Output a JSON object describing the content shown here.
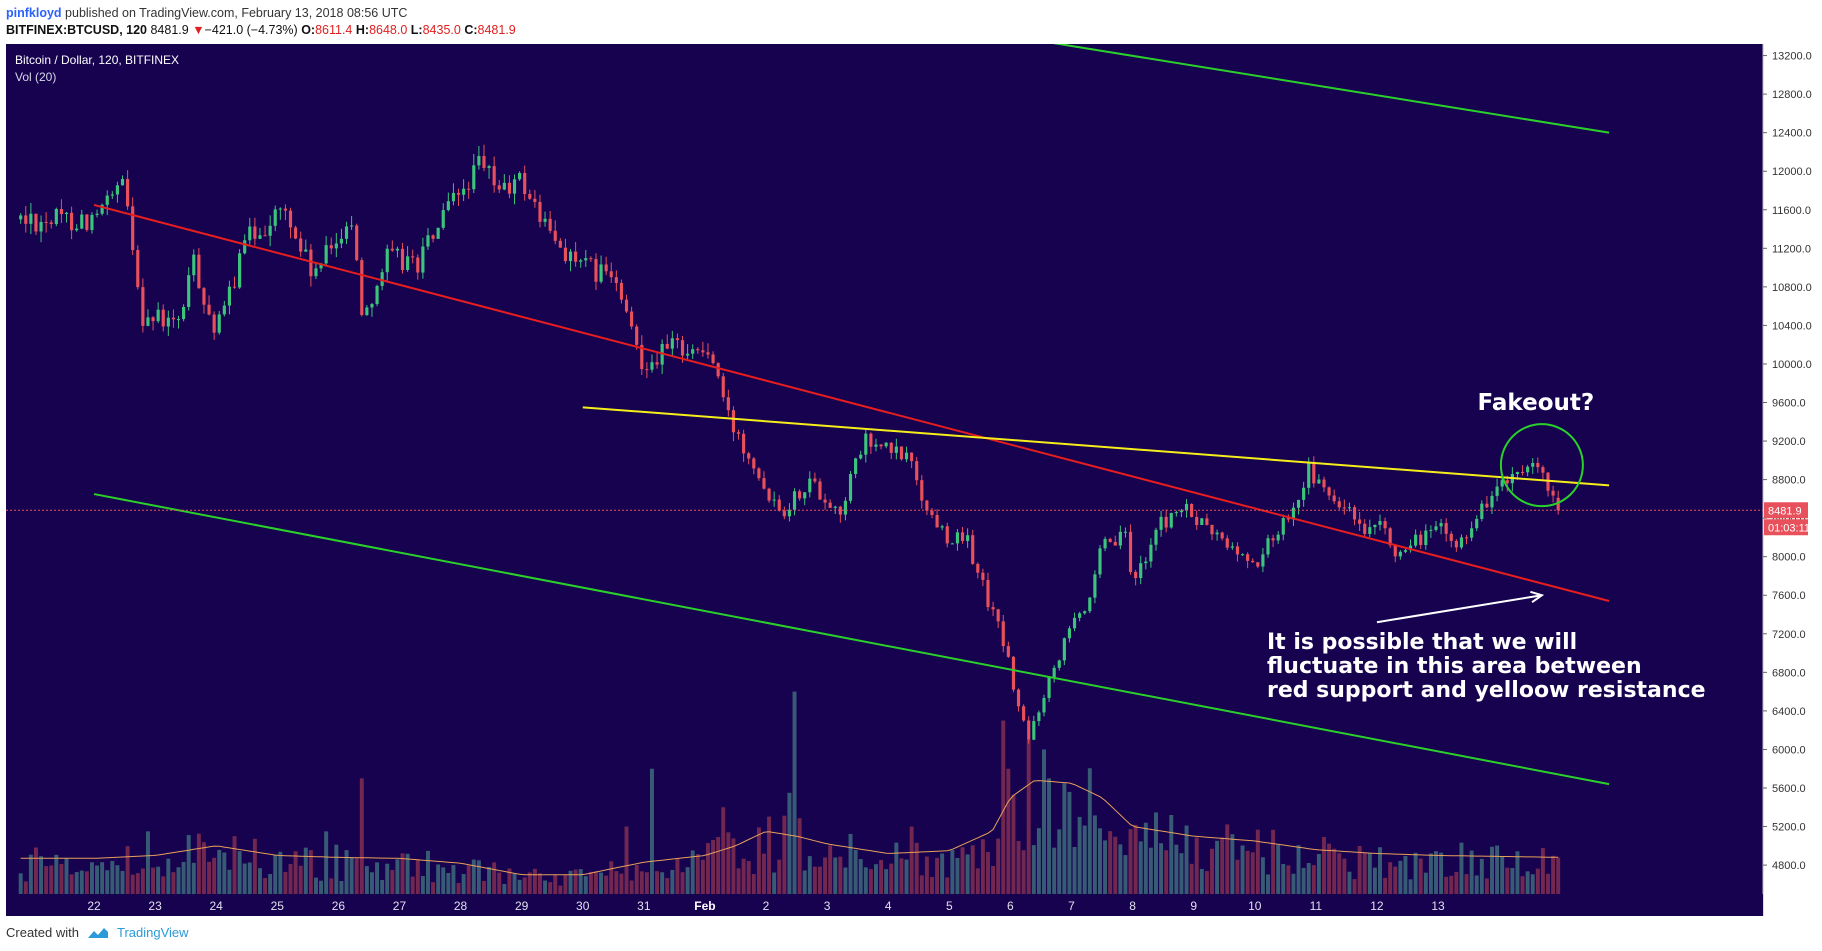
{
  "header": {
    "user": "pinfkloyd",
    "published_text": "published on TradingView.com, February 13, 2018 08:56 UTC"
  },
  "ticker": {
    "symbol": "BITFINEX:BTCUSD, 120",
    "last": "8481.9",
    "change": "−421.0 (−4.73%)",
    "o_label": "O:",
    "o": "8611.4",
    "h_label": "H:",
    "h": "8648.0",
    "l_label": "L:",
    "l": "8435.0",
    "c_label": "C:",
    "c": "8481.9"
  },
  "legend": {
    "title": "Bitcoin / Dollar, 120, BITFINEX",
    "vol": "Vol (20)"
  },
  "footer": {
    "created": "Created with",
    "brand": "TradingView"
  },
  "colors": {
    "background": "#16024f",
    "up": "#3cc47c",
    "down": "#e8505b",
    "vol_up": "#3c6378",
    "vol_down": "#7a2a50",
    "vol_ma": "#e8a058",
    "support_red": "#e61e1e",
    "resistance_yellow": "#f5ee1a",
    "channel_green": "#2bd12b",
    "annotation_white": "#ffffff"
  },
  "chart_data": {
    "type": "candlestick",
    "title": "Bitcoin / Dollar, 120, BITFINEX",
    "y_axis": {
      "ticks": [
        "13200.0",
        "12800.0",
        "12400.0",
        "12000.0",
        "11600.0",
        "11200.0",
        "10800.0",
        "10400.0",
        "10000.0",
        "9600.0",
        "9200.0",
        "8800.0",
        "8400.0",
        "8000.0",
        "7600.0",
        "7200.0",
        "6800.0",
        "6400.0",
        "6000.0",
        "5600.0",
        "5200.0",
        "4800.0"
      ],
      "range": [
        4500,
        13320
      ],
      "side": "right"
    },
    "x_axis": {
      "labels": [
        "22",
        "23",
        "24",
        "25",
        "26",
        "27",
        "28",
        "29",
        "30",
        "31",
        "Feb",
        "2",
        "3",
        "4",
        "5",
        "6",
        "7",
        "8",
        "9",
        "10",
        "11",
        "12",
        "13"
      ],
      "unit": "day (Jan 22 – Feb 13, 2018)"
    },
    "last_price": {
      "value": 8481.9,
      "label": "8481.9",
      "countdown": "01:03:11"
    },
    "price_path_keypoints": [
      {
        "day": 22.0,
        "price": 11500
      },
      {
        "day": 22.5,
        "price": 11850
      },
      {
        "day": 22.8,
        "price": 10500
      },
      {
        "day": 23.4,
        "price": 10400
      },
      {
        "day": 23.6,
        "price": 11100
      },
      {
        "day": 24.0,
        "price": 10300
      },
      {
        "day": 24.5,
        "price": 11300
      },
      {
        "day": 25.1,
        "price": 11600
      },
      {
        "day": 25.6,
        "price": 10900
      },
      {
        "day": 26.2,
        "price": 11550
      },
      {
        "day": 26.4,
        "price": 10500
      },
      {
        "day": 26.8,
        "price": 11100
      },
      {
        "day": 27.3,
        "price": 11050
      },
      {
        "day": 27.7,
        "price": 11500
      },
      {
        "day": 28.3,
        "price": 12050
      },
      {
        "day": 28.7,
        "price": 11800
      },
      {
        "day": 29.0,
        "price": 11900
      },
      {
        "day": 29.5,
        "price": 11300
      },
      {
        "day": 30.0,
        "price": 11000
      },
      {
        "day": 30.5,
        "price": 10900
      },
      {
        "day": 30.7,
        "price": 10500
      },
      {
        "day": 31.0,
        "price": 10000
      },
      {
        "day": 31.5,
        "price": 10200
      },
      {
        "day": 32.1,
        "price": 10100
      },
      {
        "day": 32.4,
        "price": 9400
      },
      {
        "day": 32.8,
        "price": 9000
      },
      {
        "day": 33.0,
        "price": 8700
      },
      {
        "day": 33.3,
        "price": 8500
      },
      {
        "day": 33.7,
        "price": 8800
      },
      {
        "day": 34.2,
        "price": 8450
      },
      {
        "day": 34.6,
        "price": 9200
      },
      {
        "day": 35.0,
        "price": 9100
      },
      {
        "day": 35.4,
        "price": 9000
      },
      {
        "day": 35.6,
        "price": 8500
      },
      {
        "day": 36.0,
        "price": 8200
      },
      {
        "day": 36.3,
        "price": 8150
      },
      {
        "day": 36.6,
        "price": 7600
      },
      {
        "day": 36.9,
        "price": 7100
      },
      {
        "day": 37.1,
        "price": 6500
      },
      {
        "day": 37.3,
        "price": 6100
      },
      {
        "day": 37.5,
        "price": 6500
      },
      {
        "day": 37.8,
        "price": 7000
      },
      {
        "day": 38.0,
        "price": 7400
      },
      {
        "day": 38.3,
        "price": 7500
      },
      {
        "day": 38.5,
        "price": 8100
      },
      {
        "day": 38.9,
        "price": 8200
      },
      {
        "day": 39.0,
        "price": 7700
      },
      {
        "day": 39.4,
        "price": 8300
      },
      {
        "day": 39.8,
        "price": 8500
      },
      {
        "day": 40.2,
        "price": 8300
      },
      {
        "day": 40.6,
        "price": 8100
      },
      {
        "day": 41.0,
        "price": 7900
      },
      {
        "day": 41.5,
        "price": 8400
      },
      {
        "day": 41.9,
        "price": 8900
      },
      {
        "day": 42.2,
        "price": 8600
      },
      {
        "day": 42.5,
        "price": 8500
      },
      {
        "day": 42.8,
        "price": 8200
      },
      {
        "day": 43.1,
        "price": 8300
      },
      {
        "day": 43.4,
        "price": 7950
      },
      {
        "day": 43.7,
        "price": 8200
      },
      {
        "day": 44.0,
        "price": 8300
      },
      {
        "day": 44.3,
        "price": 8100
      },
      {
        "day": 44.6,
        "price": 8400
      },
      {
        "day": 45.0,
        "price": 8750
      },
      {
        "day": 45.3,
        "price": 8800
      },
      {
        "day": 45.6,
        "price": 8900
      },
      {
        "day": 45.85,
        "price": 8650
      },
      {
        "day": 46.0,
        "price": 8480
      }
    ],
    "volume_ma_keypoints": [
      {
        "day": 22.0,
        "value": 4870
      },
      {
        "day": 23.0,
        "value": 4900
      },
      {
        "day": 24.0,
        "value": 5000
      },
      {
        "day": 25.0,
        "value": 4900
      },
      {
        "day": 26.0,
        "value": 4880
      },
      {
        "day": 27.0,
        "value": 4870
      },
      {
        "day": 28.0,
        "value": 4820
      },
      {
        "day": 29.0,
        "value": 4700
      },
      {
        "day": 30.0,
        "value": 4700
      },
      {
        "day": 31.0,
        "value": 4830
      },
      {
        "day": 32.0,
        "value": 4900
      },
      {
        "day": 32.5,
        "value": 5000
      },
      {
        "day": 33.0,
        "value": 5150
      },
      {
        "day": 33.5,
        "value": 5100
      },
      {
        "day": 34.0,
        "value": 5020
      },
      {
        "day": 35.0,
        "value": 4920
      },
      {
        "day": 36.0,
        "value": 4950
      },
      {
        "day": 36.7,
        "value": 5150
      },
      {
        "day": 37.0,
        "value": 5500
      },
      {
        "day": 37.4,
        "value": 5680
      },
      {
        "day": 38.0,
        "value": 5650
      },
      {
        "day": 38.5,
        "value": 5500
      },
      {
        "day": 39.0,
        "value": 5200
      },
      {
        "day": 40.0,
        "value": 5100
      },
      {
        "day": 41.0,
        "value": 5050
      },
      {
        "day": 42.0,
        "value": 4960
      },
      {
        "day": 43.0,
        "value": 4920
      },
      {
        "day": 44.0,
        "value": 4900
      },
      {
        "day": 46.0,
        "value": 4880
      }
    ],
    "volume_spikes": [
      {
        "day": 22.9,
        "value": 5150
      },
      {
        "day": 24.3,
        "value": 5100
      },
      {
        "day": 25.8,
        "value": 5150
      },
      {
        "day": 26.4,
        "value": 5700
      },
      {
        "day": 30.7,
        "value": 5200
      },
      {
        "day": 31.1,
        "value": 5800
      },
      {
        "day": 32.3,
        "value": 5400
      },
      {
        "day": 33.4,
        "value": 5550
      },
      {
        "day": 33.5,
        "value": 6600
      },
      {
        "day": 35.4,
        "value": 5200
      },
      {
        "day": 36.9,
        "value": 6300
      },
      {
        "day": 37.0,
        "value": 5800
      },
      {
        "day": 37.3,
        "value": 6100
      },
      {
        "day": 37.55,
        "value": 6000
      },
      {
        "day": 37.65,
        "value": 5700
      },
      {
        "day": 37.85,
        "value": 5650
      },
      {
        "day": 38.1,
        "value": 5300
      }
    ],
    "trendlines": [
      {
        "name": "red support",
        "color": "#e61e1e",
        "from": {
          "day": 22.0,
          "price": 11650
        },
        "to": {
          "day": 46.8,
          "price": 7540
        }
      },
      {
        "name": "yellow resistance",
        "color": "#f5ee1a",
        "from": {
          "day": 30.0,
          "price": 9550
        },
        "to": {
          "day": 46.8,
          "price": 8740
        }
      },
      {
        "name": "upper channel",
        "color": "#2bd12b",
        "from": {
          "day": 37.7,
          "price": 13330
        },
        "to": {
          "day": 46.8,
          "price": 12400
        }
      },
      {
        "name": "lower channel",
        "color": "#2bd12b",
        "from": {
          "day": 22.0,
          "price": 8650
        },
        "to": {
          "day": 46.8,
          "price": 5640
        }
      }
    ],
    "annotations": {
      "fakeout": "Fakeout?",
      "note_lines": [
        "It is possible that we will",
        "fluctuate in this area between",
        "red support and yelloow resistance"
      ],
      "circle_center": {
        "day": 45.7,
        "price": 8950
      },
      "arrow": {
        "from": {
          "day": 43.0,
          "price": 7320
        },
        "to": {
          "day": 45.7,
          "price": 7600
        }
      }
    }
  }
}
